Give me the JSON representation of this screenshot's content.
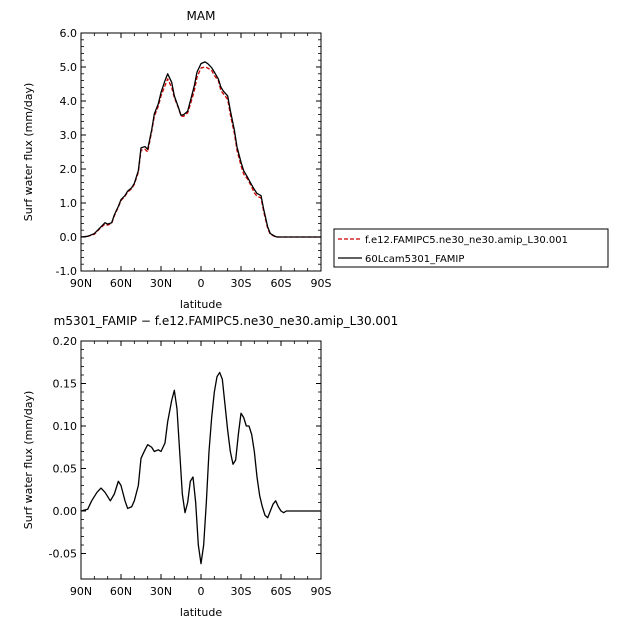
{
  "chart_data": [
    {
      "type": "line",
      "title": "MAM",
      "xlabel": "latitude",
      "ylabel": "Surf water flux (mm/day)",
      "xlim": [
        90,
        -90
      ],
      "ylim": [
        -1.0,
        6.0
      ],
      "xticks": [
        90,
        60,
        30,
        0,
        -30,
        -60,
        -90
      ],
      "xtick_labels": [
        "90N",
        "60N",
        "30N",
        "0",
        "30S",
        "60S",
        "90S"
      ],
      "yticks": [
        -1,
        0,
        1,
        2,
        3,
        4,
        5,
        6
      ],
      "ytick_labels": [
        "-1.0",
        "0.0",
        "1.0",
        "2.0",
        "3.0",
        "4.0",
        "5.0",
        "6.0"
      ],
      "legend_position": "right",
      "series": [
        {
          "name": "f.e12.FAMIPC5.ne30_ne30.amip_L30.001",
          "color": "#cc0000",
          "style": "dashed",
          "x": [
            90,
            85,
            80,
            75,
            72,
            70,
            67,
            65,
            62,
            60,
            57,
            55,
            52,
            50,
            47,
            45,
            42,
            40,
            37,
            35,
            32,
            30,
            27,
            25,
            22,
            20,
            17,
            15,
            13,
            10,
            8,
            5,
            3,
            0,
            -3,
            -5,
            -8,
            -10,
            -13,
            -15,
            -17,
            -20,
            -22,
            -25,
            -27,
            -30,
            -32,
            -35,
            -37,
            -40,
            -42,
            -45,
            -47,
            -50,
            -52,
            -55,
            -57,
            -60,
            -62,
            -65,
            -67,
            -70,
            -72,
            -75,
            -80,
            -85,
            -90
          ],
          "y": [
            0.0,
            0.02,
            0.08,
            0.28,
            0.38,
            0.35,
            0.4,
            0.62,
            0.88,
            1.07,
            1.2,
            1.32,
            1.42,
            1.55,
            1.9,
            2.55,
            2.58,
            2.5,
            3.1,
            3.55,
            3.85,
            4.15,
            4.45,
            4.65,
            4.4,
            4.1,
            3.8,
            3.56,
            3.55,
            3.65,
            3.9,
            4.3,
            4.7,
            4.97,
            5.0,
            4.97,
            4.9,
            4.75,
            4.6,
            4.3,
            4.2,
            4.05,
            3.6,
            3.05,
            2.55,
            2.1,
            1.85,
            1.7,
            1.55,
            1.3,
            1.2,
            1.15,
            0.75,
            0.25,
            0.08,
            0.02,
            0.0,
            0.0,
            0.0,
            0.0,
            0.0,
            0.0,
            0.0,
            0.0,
            0.0,
            0.0,
            0.0
          ]
        },
        {
          "name": "60Lcam5301_FAMIP",
          "color": "#000000",
          "style": "solid",
          "x": [
            90,
            85,
            80,
            75,
            72,
            70,
            67,
            65,
            62,
            60,
            57,
            55,
            52,
            50,
            47,
            45,
            42,
            40,
            37,
            35,
            32,
            30,
            27,
            25,
            22,
            20,
            17,
            15,
            13,
            10,
            8,
            5,
            3,
            0,
            -3,
            -5,
            -8,
            -10,
            -13,
            -15,
            -17,
            -20,
            -22,
            -25,
            -27,
            -30,
            -32,
            -35,
            -37,
            -40,
            -42,
            -45,
            -47,
            -50,
            -52,
            -55,
            -57,
            -60,
            -62,
            -65,
            -67,
            -70,
            -72,
            -75,
            -80,
            -85,
            -90
          ],
          "y": [
            0.0,
            0.02,
            0.1,
            0.3,
            0.42,
            0.38,
            0.42,
            0.65,
            0.9,
            1.1,
            1.22,
            1.35,
            1.45,
            1.58,
            1.95,
            2.62,
            2.66,
            2.58,
            3.15,
            3.62,
            3.92,
            4.25,
            4.6,
            4.8,
            4.55,
            4.15,
            3.82,
            3.58,
            3.6,
            3.7,
            4.0,
            4.45,
            4.85,
            5.1,
            5.15,
            5.1,
            4.98,
            4.85,
            4.65,
            4.4,
            4.28,
            4.15,
            3.72,
            3.15,
            2.65,
            2.2,
            1.95,
            1.75,
            1.6,
            1.4,
            1.28,
            1.22,
            0.82,
            0.3,
            0.1,
            0.03,
            0.0,
            0.0,
            0.0,
            0.0,
            0.0,
            0.0,
            0.0,
            0.0,
            0.0,
            0.0,
            0.0
          ]
        }
      ]
    },
    {
      "type": "line",
      "title": "m5301_FAMIP − f.e12.FAMIPC5.ne30_ne30.amip_L30.001",
      "xlabel": "latitude",
      "ylabel": "Surf water flux (mm/day)",
      "xlim": [
        90,
        -90
      ],
      "ylim": [
        -0.08,
        0.2
      ],
      "xticks": [
        90,
        60,
        30,
        0,
        -30,
        -60,
        -90
      ],
      "xtick_labels": [
        "90N",
        "60N",
        "30N",
        "0",
        "30S",
        "60S",
        "90S"
      ],
      "yticks": [
        -0.05,
        0.0,
        0.05,
        0.1,
        0.15,
        0.2
      ],
      "ytick_labels": [
        "-0.05",
        "0.00",
        "0.05",
        "0.10",
        "0.15",
        "0.20"
      ],
      "series": [
        {
          "color": "#000000",
          "style": "solid",
          "x": [
            90,
            85,
            82,
            78,
            75,
            72,
            68,
            65,
            62,
            60,
            57,
            55,
            52,
            50,
            47,
            45,
            42,
            40,
            37,
            35,
            32,
            30,
            27,
            25,
            22,
            20,
            18,
            16,
            14,
            12,
            10,
            8,
            6,
            4,
            2,
            0,
            -2,
            -4,
            -6,
            -8,
            -10,
            -12,
            -14,
            -16,
            -18,
            -20,
            -22,
            -24,
            -26,
            -28,
            -30,
            -32,
            -34,
            -36,
            -38,
            -40,
            -42,
            -44,
            -46,
            -48,
            -50,
            -52,
            -54,
            -56,
            -58,
            -60,
            -62,
            -64,
            -66,
            -68,
            -70,
            -75,
            -80,
            -85,
            -90
          ],
          "y": [
            0.0,
            0.002,
            0.012,
            0.022,
            0.027,
            0.022,
            0.012,
            0.02,
            0.035,
            0.03,
            0.012,
            0.003,
            0.005,
            0.012,
            0.03,
            0.062,
            0.072,
            0.078,
            0.075,
            0.07,
            0.072,
            0.07,
            0.08,
            0.105,
            0.13,
            0.142,
            0.12,
            0.07,
            0.02,
            -0.002,
            0.01,
            0.035,
            0.04,
            0.01,
            -0.04,
            -0.062,
            -0.04,
            0.01,
            0.07,
            0.11,
            0.14,
            0.158,
            0.163,
            0.155,
            0.125,
            0.095,
            0.07,
            0.055,
            0.06,
            0.09,
            0.115,
            0.11,
            0.1,
            0.1,
            0.09,
            0.07,
            0.04,
            0.018,
            0.005,
            -0.005,
            -0.008,
            0.0,
            0.008,
            0.012,
            0.005,
            0.0,
            -0.002,
            0.0,
            0.0,
            0.0,
            0.0,
            0.0,
            0.0,
            0.0,
            0.0
          ]
        }
      ]
    }
  ]
}
